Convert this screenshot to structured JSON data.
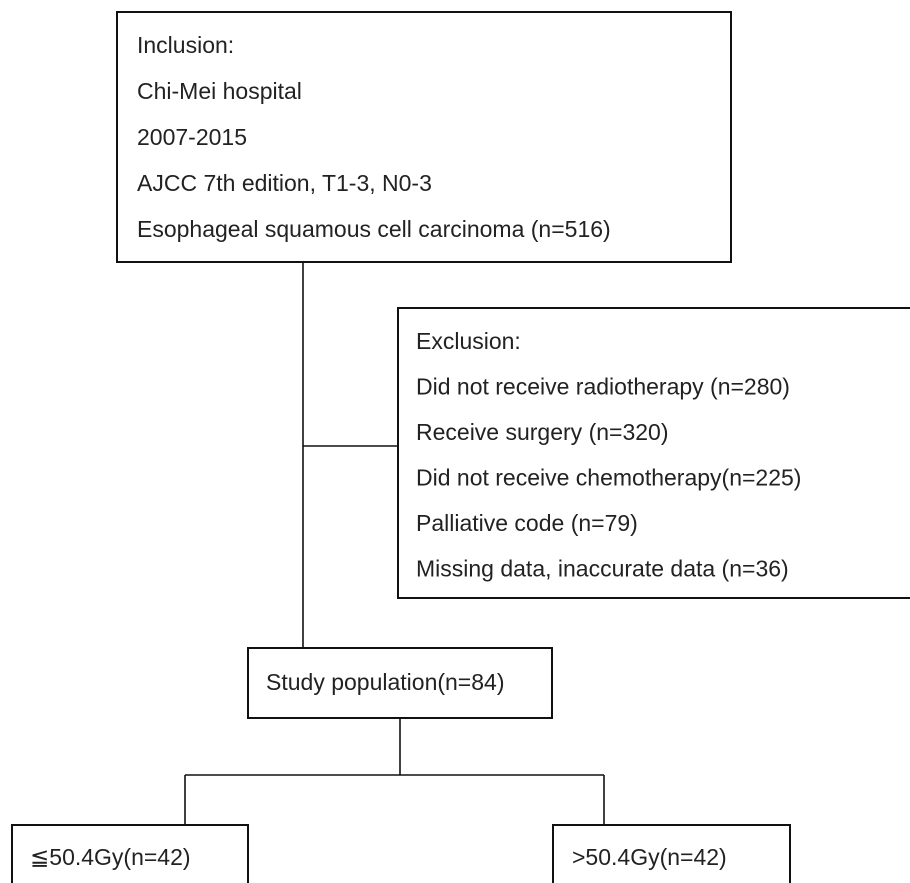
{
  "inclusion": {
    "lines": [
      "Inclusion:",
      "Chi-Mei hospital",
      "2007-2015",
      "AJCC 7th edition, T1-3, N0-3",
      "Esophageal squamous cell carcinoma (n=516)"
    ]
  },
  "exclusion": {
    "lines": [
      "Exclusion:",
      "Did not receive radiotherapy (n=280)",
      "Receive surgery (n=320)",
      "Did not receive chemotherapy(n=225)",
      "Palliative code (n=79)",
      "Missing data, inaccurate data (n=36)"
    ]
  },
  "study": {
    "label": "Study population(n=84)"
  },
  "arms": [
    {
      "label": "≦50.4Gy(n=42)"
    },
    {
      "label": ">50.4Gy(n=42)"
    }
  ]
}
